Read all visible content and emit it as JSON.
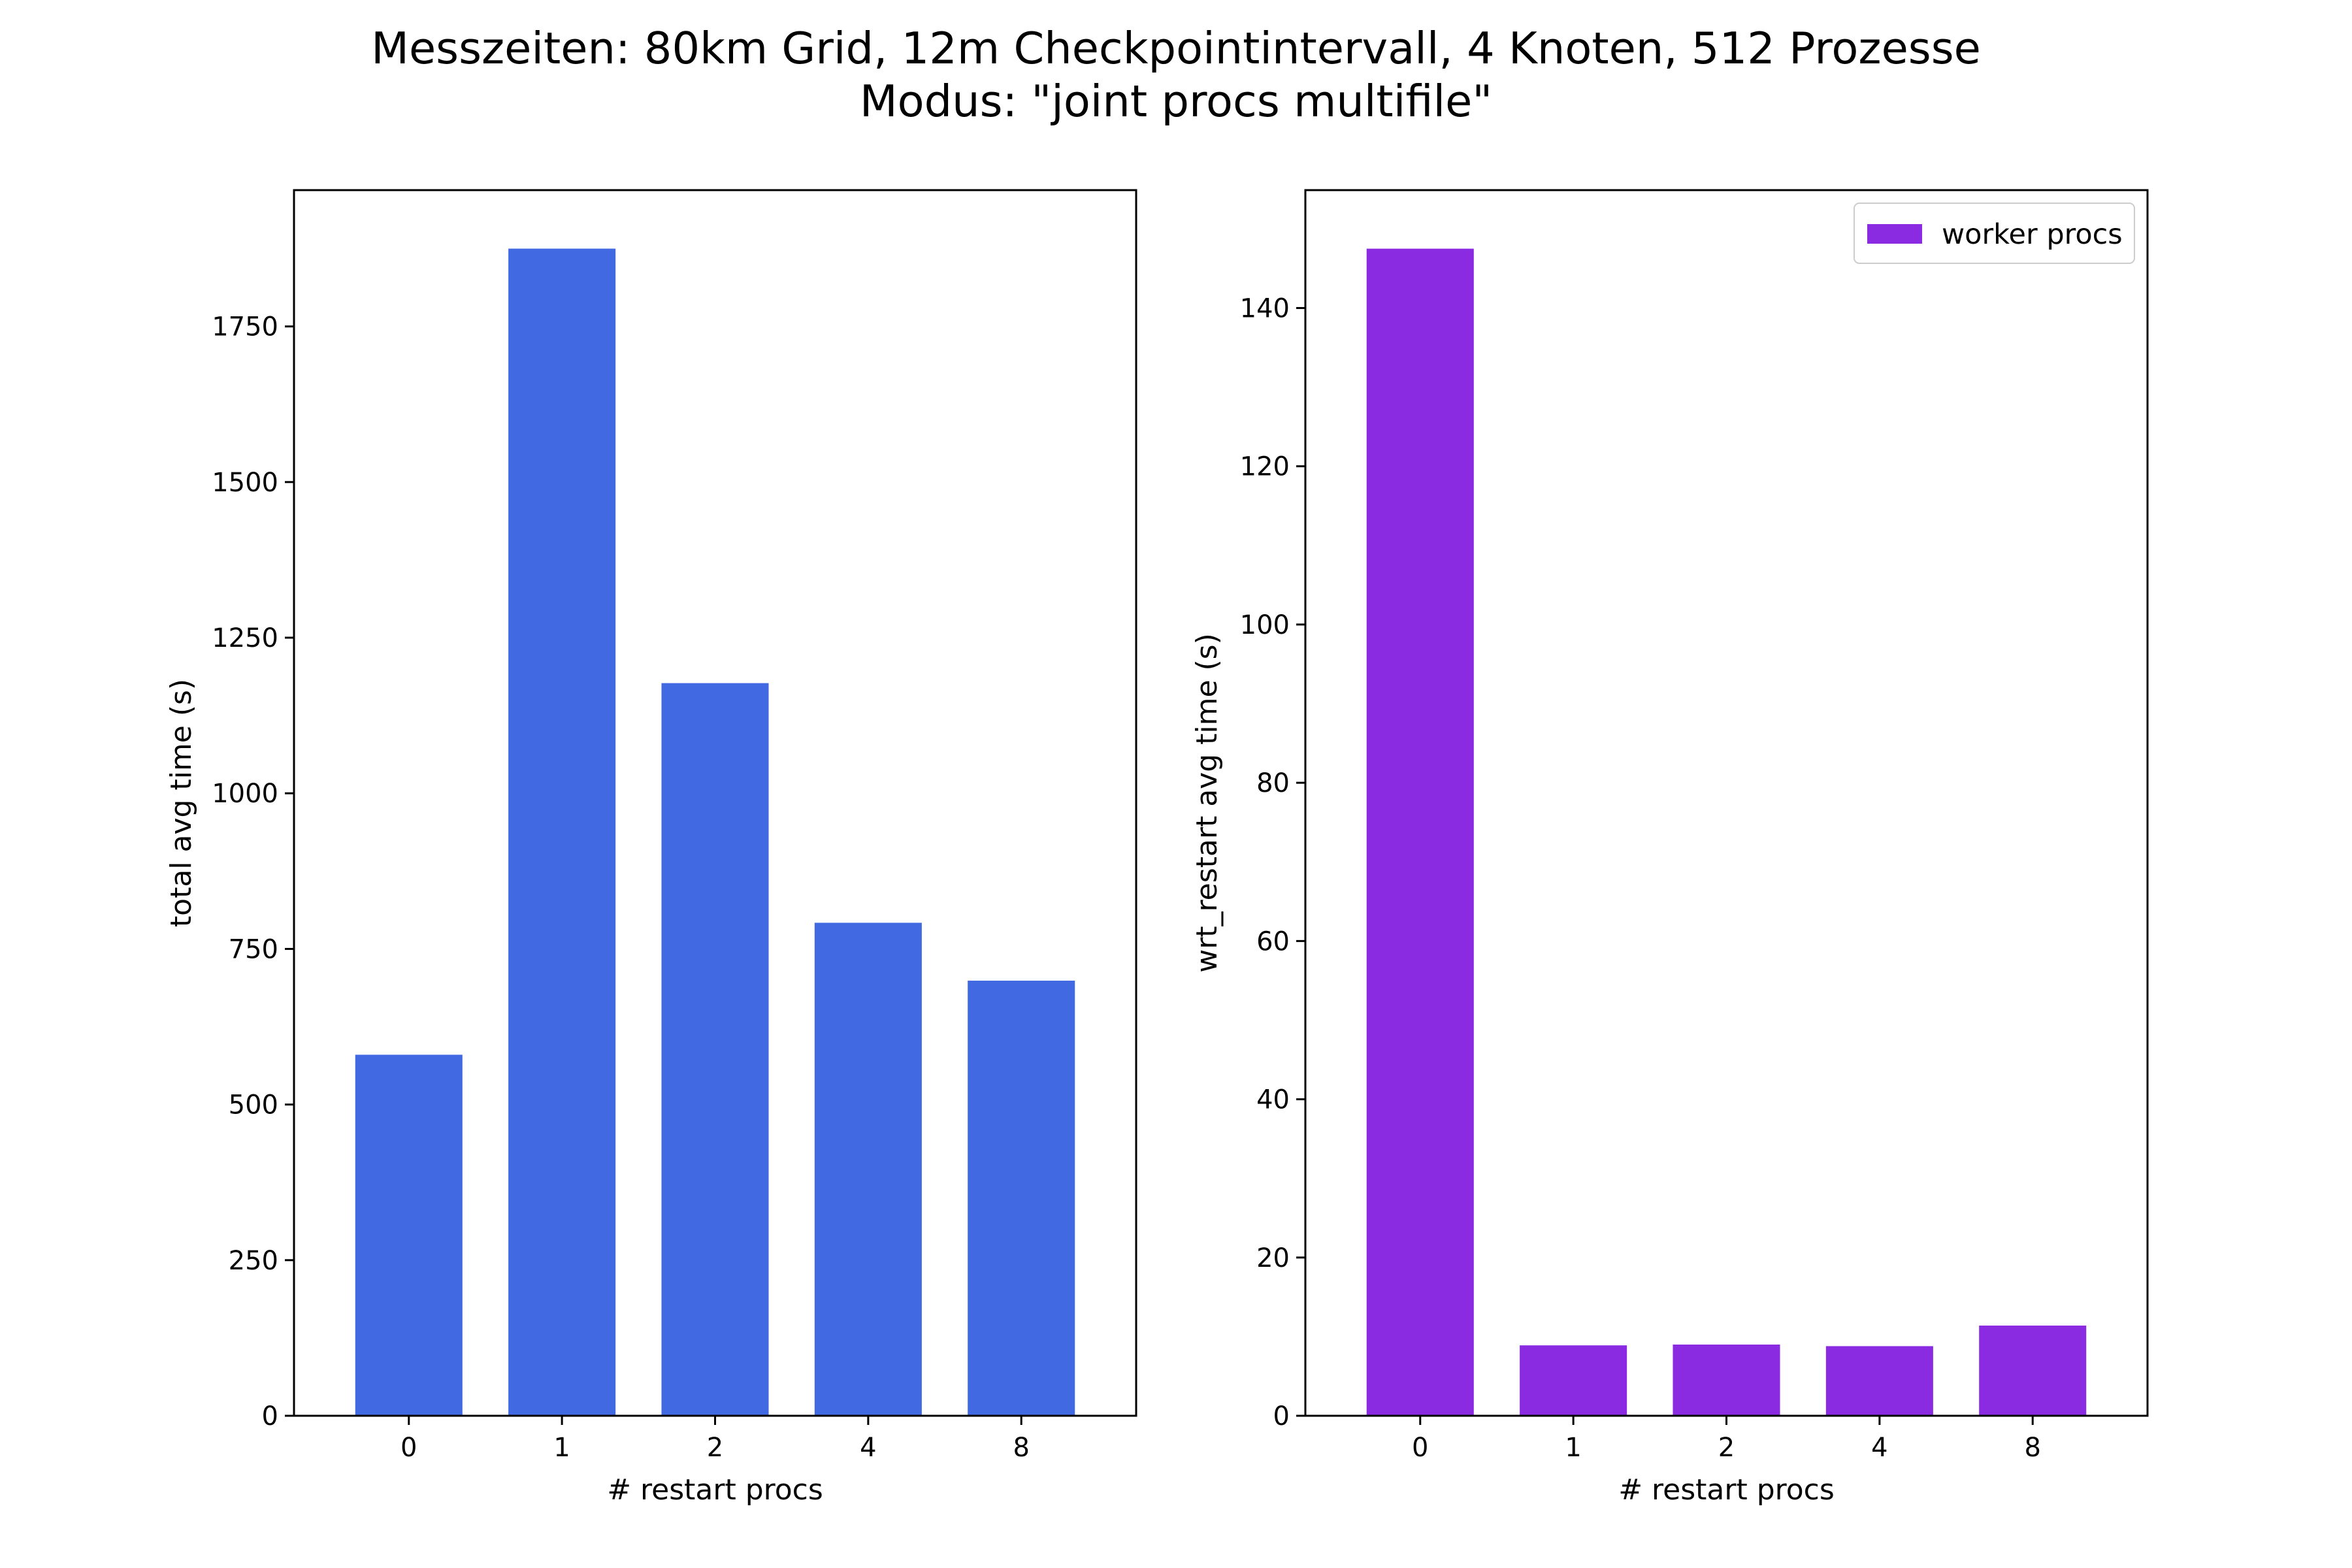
{
  "title_lines": [
    "Messzeiten: 80km Grid, 12m Checkpointintervall, 4 Knoten, 512 Prozesse",
    "Modus: \"joint procs multifile\""
  ],
  "chart_data": [
    {
      "type": "bar",
      "categories": [
        "0",
        "1",
        "2",
        "4",
        "8"
      ],
      "values": [
        580,
        1875,
        1177,
        792,
        699
      ],
      "xlabel": "# restart procs",
      "ylabel": "total avg time (s)",
      "ylim": [
        0,
        1969
      ],
      "yticks": [
        0,
        250,
        500,
        750,
        1000,
        1250,
        1500,
        1750
      ],
      "color": "#4169e1",
      "legend": null,
      "grid": false
    },
    {
      "type": "bar",
      "categories": [
        "0",
        "1",
        "2",
        "4",
        "8"
      ],
      "series": [
        {
          "name": "worker procs",
          "values": [
            147.5,
            8.9,
            9.0,
            8.8,
            11.4
          ]
        }
      ],
      "xlabel": "# restart procs",
      "ylabel": "wrt_restart avg time (s)",
      "ylim": [
        0,
        154.9
      ],
      "yticks": [
        0,
        20,
        40,
        60,
        80,
        100,
        120,
        140
      ],
      "color": "#8a2be2",
      "legend": {
        "placement": "top-right",
        "label": "worker procs"
      },
      "grid": false
    }
  ]
}
